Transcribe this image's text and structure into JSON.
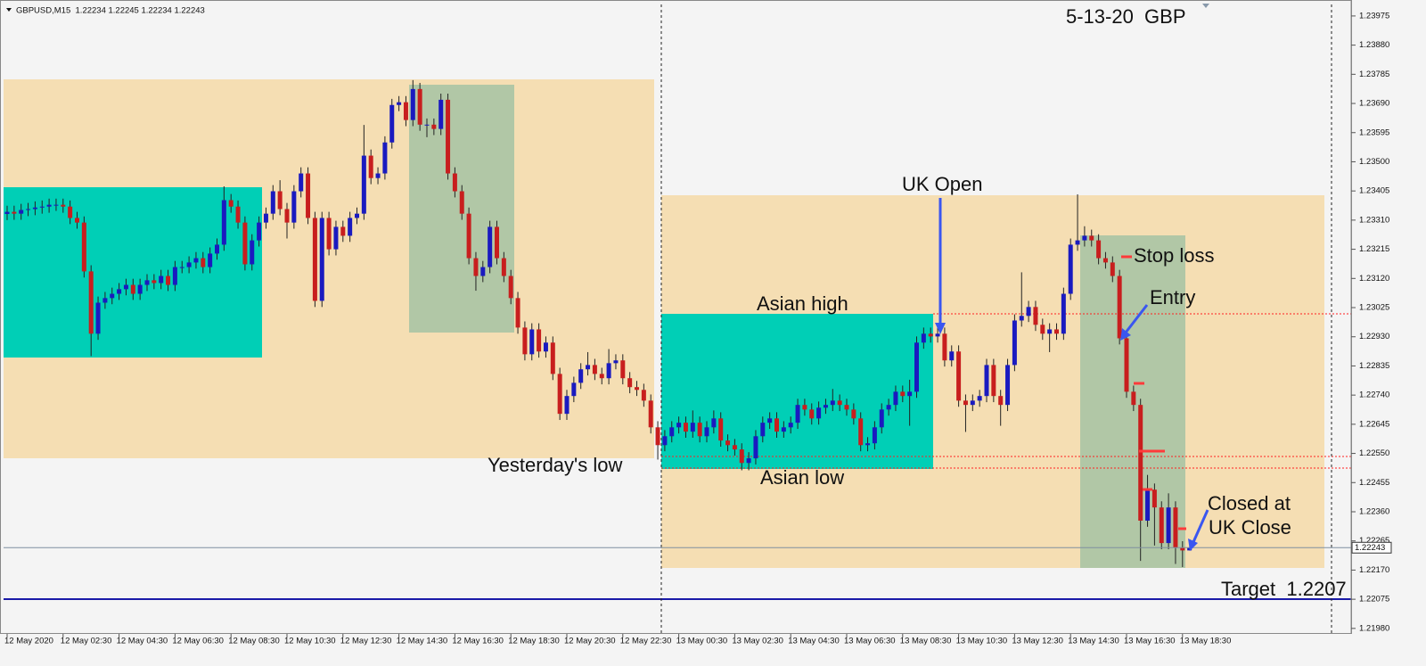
{
  "chart_data": {
    "type": "candlestick",
    "header": "GBPUSD,M15  1.22234 1.22245 1.22234 1.22243",
    "up_color": "#1a1ac0",
    "down_color": "#c81e1e",
    "categories": [
      "12 May 2020",
      null,
      null,
      null,
      null,
      null,
      null,
      null,
      "12 May 02:30",
      null,
      null,
      null,
      null,
      null,
      null,
      null,
      "12 May 04:30",
      null,
      null,
      null,
      null,
      null,
      null,
      null,
      "12 May 06:30",
      null,
      null,
      null,
      null,
      null,
      null,
      null,
      "12 May 08:30",
      null,
      null,
      null,
      null,
      null,
      null,
      null,
      "12 May 10:30",
      null,
      null,
      null,
      null,
      null,
      null,
      null,
      "12 May 12:30",
      null,
      null,
      null,
      null,
      null,
      null,
      null,
      "12 May 14:30",
      null,
      null,
      null,
      null,
      null,
      null,
      null,
      "12 May 16:30",
      null,
      null,
      null,
      null,
      null,
      null,
      null,
      "12 May 18:30",
      null,
      null,
      null,
      null,
      null,
      null,
      null,
      "12 May 20:30",
      null,
      null,
      null,
      null,
      null,
      null,
      null,
      "12 May 22:30",
      null,
      null,
      null,
      null,
      null,
      null,
      null,
      "13 May 00:30",
      null,
      null,
      null,
      null,
      null,
      null,
      null,
      "13 May 02:30",
      null,
      null,
      null,
      null,
      null,
      null,
      null,
      "13 May 04:30",
      null,
      null,
      null,
      null,
      null,
      null,
      null,
      "13 May 06:30",
      null,
      null,
      null,
      null,
      null,
      null,
      null,
      "13 May 08:30",
      null,
      null,
      null,
      null,
      null,
      null,
      null,
      "13 May 10:30",
      null,
      null,
      null,
      null,
      null,
      null,
      null,
      "13 May 12:30",
      null,
      null,
      null,
      null,
      null,
      null,
      null,
      "13 May 14:30",
      null,
      null,
      null,
      null,
      null,
      null,
      null,
      "13 May 16:30",
      null,
      null,
      null,
      null,
      null,
      null,
      null,
      "13 May 18:30",
      null
    ],
    "open": [
      1.2333,
      1.23337,
      1.23331,
      1.23343,
      1.23346,
      1.23351,
      1.23354,
      1.2336,
      1.2336,
      1.23354,
      1.23317,
      1.23302,
      1.23143,
      1.2294,
      1.23041,
      1.23056,
      1.2307,
      1.23085,
      1.23099,
      1.2307,
      1.23099,
      1.23114,
      1.23105,
      1.23128,
      1.23099,
      1.23157,
      1.23157,
      1.23172,
      1.23186,
      1.23157,
      1.23201,
      1.2323,
      1.23375,
      1.23354,
      1.23302,
      1.23166,
      1.23244,
      1.23302,
      1.23331,
      1.23404,
      1.23346,
      1.23302,
      1.23404,
      1.23462,
      1.23317,
      1.23047,
      1.23317,
      1.23215,
      1.23288,
      1.23259,
      1.23317,
      1.23331,
      1.2352,
      1.23447,
      1.23462,
      1.23563,
      1.23685,
      1.23694,
      1.23636,
      1.23737,
      1.23621,
      1.23621,
      1.23607,
      1.23702,
      1.23462,
      1.23404,
      1.23331,
      1.23186,
      1.23128,
      1.23157,
      1.23288,
      1.23186,
      1.23128,
      1.23056,
      1.2296,
      1.22873,
      1.22954,
      1.22882,
      1.22911,
      1.22809,
      1.22679,
      1.22737,
      1.2278,
      1.22824,
      1.22838,
      1.22809,
      1.22795,
      1.22844,
      1.22853,
      1.22795,
      1.22766,
      1.22757,
      1.22722,
      1.22635,
      1.22577,
      1.22606,
      1.22635,
      1.2265,
      1.22621,
      1.2265,
      1.22606,
      1.22635,
      1.22664,
      1.22592,
      1.22577,
      1.22563,
      1.22519,
      1.22534,
      1.22606,
      1.2265,
      1.22664,
      1.22621,
      1.22635,
      1.2265,
      1.22708,
      1.22693,
      1.22664,
      1.22699,
      1.22708,
      1.22722,
      1.22708,
      1.22693,
      1.22664,
      1.22577,
      1.22583,
      1.22635,
      1.22693,
      1.22708,
      1.22751,
      1.22737,
      1.22751,
      1.22911,
      1.2294,
      1.22931,
      1.2294,
      1.22853,
      1.22882,
      1.22722,
      1.22708,
      1.22722,
      1.22737,
      1.22838,
      1.22737,
      1.22708,
      1.22838,
      1.22983,
      1.22998,
      1.23027,
      1.22969,
      1.2294,
      1.22954,
      1.2294,
      1.2307,
      1.2323,
      1.23244,
      1.23259,
      1.23244,
      1.23186,
      1.23172,
      1.23128,
      1.22925,
      1.22751,
      1.22708,
      1.22331,
      1.22432,
      1.22374,
      1.22258,
      1.22374,
      1.22244,
      1.22234
    ],
    "high": [
      1.23357,
      1.23357,
      1.23363,
      1.23366,
      1.23371,
      1.23374,
      1.2338,
      1.2338,
      1.2338,
      1.23374,
      1.23337,
      1.23322,
      1.23163,
      1.23061,
      1.23076,
      1.2309,
      1.23105,
      1.23119,
      1.23119,
      1.23119,
      1.23134,
      1.23134,
      1.23148,
      1.23148,
      1.23177,
      1.23177,
      1.23192,
      1.23206,
      1.23206,
      1.23221,
      1.2325,
      1.2342,
      1.23395,
      1.23374,
      1.23322,
      1.23264,
      1.23322,
      1.23351,
      1.23424,
      1.2344,
      1.23366,
      1.23424,
      1.23482,
      1.23482,
      1.23337,
      1.23337,
      1.23337,
      1.23308,
      1.23308,
      1.23337,
      1.23351,
      1.2362,
      1.2354,
      1.23482,
      1.23583,
      1.23705,
      1.23714,
      1.23714,
      1.23766,
      1.23757,
      1.23641,
      1.23641,
      1.23722,
      1.23722,
      1.23482,
      1.23424,
      1.23351,
      1.23206,
      1.23177,
      1.23308,
      1.23308,
      1.23206,
      1.23148,
      1.23076,
      1.2298,
      1.22974,
      1.22974,
      1.22931,
      1.22931,
      1.22829,
      1.22757,
      1.228,
      1.22844,
      1.2288,
      1.22858,
      1.22829,
      1.2289,
      1.22873,
      1.22873,
      1.22815,
      1.22786,
      1.22777,
      1.22742,
      1.22655,
      1.22626,
      1.22655,
      1.2267,
      1.2267,
      1.2269,
      1.2267,
      1.22655,
      1.2269,
      1.22684,
      1.22612,
      1.22597,
      1.22583,
      1.22554,
      1.22626,
      1.2267,
      1.22684,
      1.22684,
      1.22655,
      1.2267,
      1.22728,
      1.22728,
      1.22713,
      1.22719,
      1.22728,
      1.2276,
      1.22742,
      1.22728,
      1.22713,
      1.22684,
      1.22603,
      1.22655,
      1.22713,
      1.22728,
      1.22771,
      1.22771,
      1.2279,
      1.22931,
      1.2296,
      1.2296,
      1.2296,
      1.2296,
      1.22902,
      1.22902,
      1.22742,
      1.22742,
      1.22757,
      1.22858,
      1.22858,
      1.22757,
      1.22858,
      1.23003,
      1.2314,
      1.23047,
      1.23047,
      1.22989,
      1.22974,
      1.22974,
      1.2309,
      1.2325,
      1.23394,
      1.2329,
      1.23279,
      1.23264,
      1.23206,
      1.23192,
      1.23148,
      1.22945,
      1.22771,
      1.22728,
      1.2248,
      1.22452,
      1.22394,
      1.2242,
      1.22394,
      1.22264,
      1.22245
    ],
    "low": [
      1.2331,
      1.23311,
      1.23311,
      1.23323,
      1.23326,
      1.23331,
      1.23334,
      1.2334,
      1.23334,
      1.23297,
      1.23282,
      1.23123,
      1.22867,
      1.2292,
      1.23021,
      1.23036,
      1.2305,
      1.23065,
      1.2305,
      1.2305,
      1.23079,
      1.23085,
      1.23085,
      1.23079,
      1.23079,
      1.23137,
      1.23137,
      1.23152,
      1.23137,
      1.23137,
      1.23181,
      1.2321,
      1.23334,
      1.23282,
      1.23146,
      1.23146,
      1.23224,
      1.23282,
      1.23311,
      1.23326,
      1.2325,
      1.23282,
      1.23384,
      1.23297,
      1.23027,
      1.23027,
      1.23195,
      1.23195,
      1.23239,
      1.23239,
      1.23297,
      1.23311,
      1.23427,
      1.23427,
      1.23442,
      1.23543,
      1.23665,
      1.23616,
      1.23616,
      1.23601,
      1.2358,
      1.23587,
      1.23587,
      1.23442,
      1.23384,
      1.23311,
      1.23166,
      1.2308,
      1.23108,
      1.23137,
      1.23166,
      1.23108,
      1.23036,
      1.2294,
      1.22853,
      1.22853,
      1.22862,
      1.22862,
      1.22789,
      1.22659,
      1.22659,
      1.22717,
      1.2276,
      1.22804,
      1.22789,
      1.22775,
      1.22775,
      1.22824,
      1.22775,
      1.22746,
      1.22737,
      1.22702,
      1.22615,
      1.2253,
      1.22557,
      1.22586,
      1.22615,
      1.22601,
      1.22601,
      1.22586,
      1.22586,
      1.22615,
      1.22572,
      1.22557,
      1.22543,
      1.22495,
      1.22495,
      1.22514,
      1.22586,
      1.2263,
      1.22601,
      1.22601,
      1.22615,
      1.2263,
      1.22673,
      1.22644,
      1.22644,
      1.22679,
      1.22688,
      1.22688,
      1.22673,
      1.22644,
      1.22557,
      1.22557,
      1.22563,
      1.22615,
      1.22673,
      1.22688,
      1.22717,
      1.2264,
      1.22731,
      1.22891,
      1.22911,
      1.22911,
      1.22833,
      1.22833,
      1.22702,
      1.2262,
      1.22688,
      1.22702,
      1.22717,
      1.22717,
      1.2264,
      1.22688,
      1.22818,
      1.22963,
      1.22978,
      1.22949,
      1.2292,
      1.2288,
      1.2292,
      1.2292,
      1.2305,
      1.2321,
      1.23224,
      1.23224,
      1.23166,
      1.23152,
      1.23108,
      1.22905,
      1.22731,
      1.22688,
      1.222,
      1.22311,
      1.2225,
      1.22238,
      1.22238,
      1.2219,
      1.2218,
      1.22234
    ],
    "close": [
      1.23337,
      1.23331,
      1.23343,
      1.23346,
      1.23351,
      1.23354,
      1.2336,
      1.2336,
      1.23354,
      1.23317,
      1.23302,
      1.23143,
      1.2294,
      1.23041,
      1.23056,
      1.2307,
      1.23085,
      1.23099,
      1.2307,
      1.23099,
      1.23114,
      1.23105,
      1.23128,
      1.23099,
      1.23157,
      1.23157,
      1.23172,
      1.23186,
      1.23157,
      1.23201,
      1.2323,
      1.23375,
      1.23354,
      1.23302,
      1.23166,
      1.23244,
      1.23302,
      1.23331,
      1.23404,
      1.23346,
      1.23302,
      1.23404,
      1.23462,
      1.23317,
      1.23047,
      1.23317,
      1.23215,
      1.23288,
      1.23259,
      1.23317,
      1.23331,
      1.2352,
      1.23447,
      1.23462,
      1.23563,
      1.23685,
      1.23694,
      1.23636,
      1.23737,
      1.23621,
      1.23621,
      1.23607,
      1.23702,
      1.23462,
      1.23404,
      1.23331,
      1.23186,
      1.23128,
      1.23157,
      1.23288,
      1.23186,
      1.23128,
      1.23056,
      1.2296,
      1.22873,
      1.22954,
      1.22882,
      1.22911,
      1.22809,
      1.22679,
      1.22737,
      1.2278,
      1.22824,
      1.22838,
      1.22809,
      1.22795,
      1.22844,
      1.22853,
      1.22795,
      1.22766,
      1.22757,
      1.22722,
      1.22635,
      1.22577,
      1.22606,
      1.22635,
      1.2265,
      1.22621,
      1.2265,
      1.22606,
      1.22635,
      1.22664,
      1.22592,
      1.22577,
      1.22563,
      1.22519,
      1.22534,
      1.22606,
      1.2265,
      1.22664,
      1.22621,
      1.22635,
      1.2265,
      1.22708,
      1.22693,
      1.22664,
      1.22699,
      1.22708,
      1.22722,
      1.22708,
      1.22693,
      1.22664,
      1.22577,
      1.22583,
      1.22635,
      1.22693,
      1.22708,
      1.22751,
      1.22737,
      1.22751,
      1.22911,
      1.2294,
      1.22931,
      1.2294,
      1.22853,
      1.22882,
      1.22722,
      1.22708,
      1.22722,
      1.22737,
      1.22838,
      1.22737,
      1.22708,
      1.22838,
      1.22983,
      1.22998,
      1.23027,
      1.22969,
      1.2294,
      1.22954,
      1.2294,
      1.2307,
      1.2323,
      1.23244,
      1.23259,
      1.23244,
      1.23186,
      1.23172,
      1.23128,
      1.22925,
      1.22751,
      1.22708,
      1.22331,
      1.22432,
      1.22374,
      1.22258,
      1.22374,
      1.22244,
      1.22234,
      1.22243
    ],
    "ylim": [
      1.21965,
      1.24027
    ],
    "yticks": [
      1.23975,
      {
        "value": 1.2388,
        "label": "1.23880"
      },
      1.23785,
      {
        "value": 1.2369,
        "label": "1.23690"
      },
      1.23595,
      {
        "value": 1.235,
        "label": "1.23500"
      },
      1.23405,
      {
        "value": 1.2331,
        "label": "1.23310"
      },
      1.23215,
      {
        "value": 1.2312,
        "label": "1.23120"
      },
      1.23025,
      {
        "value": 1.2293,
        "label": "1.22930"
      },
      1.22835,
      {
        "value": 1.2274,
        "label": "1.22740"
      },
      1.22645,
      {
        "value": 1.2255,
        "label": "1.22550"
      },
      1.22455,
      {
        "value": 1.2236,
        "label": "1.22360"
      },
      1.22265,
      {
        "value": 1.2217,
        "label": "1.22170"
      },
      1.22075,
      {
        "value": 1.2198,
        "label": "1.21980"
      }
    ],
    "annotations": [
      "5-13-20  GBP",
      "UK Open",
      "Asian high",
      "Asian low",
      "Yesterday's low",
      "Stop loss",
      "Entry",
      "Closed at",
      "UK Close",
      "Target  1.2207"
    ]
  }
}
